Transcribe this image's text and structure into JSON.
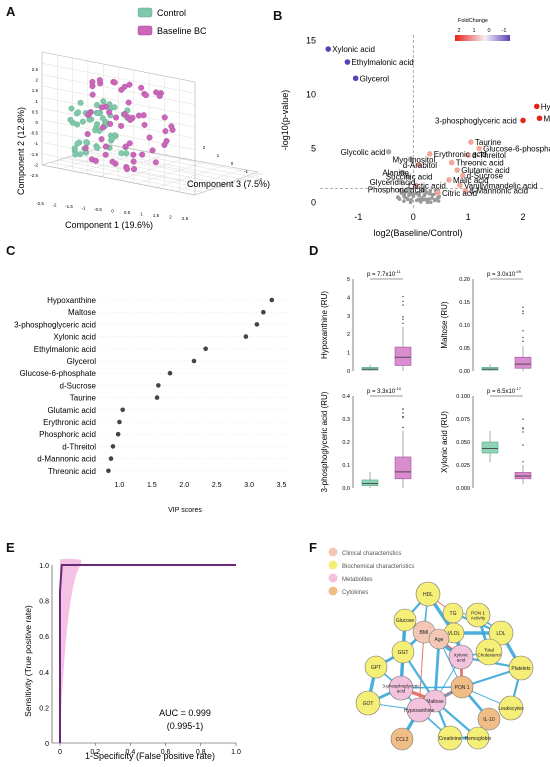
{
  "panels": {
    "a": {
      "label": "A"
    },
    "b": {
      "label": "B"
    },
    "c": {
      "label": "C"
    },
    "d": {
      "label": "D"
    },
    "e": {
      "label": "E"
    },
    "f": {
      "label": "F"
    }
  },
  "chart_data": [
    {
      "panel": "A",
      "type": "scatter",
      "title": "",
      "legend": {
        "placement": "top",
        "entries": [
          {
            "name": "Control",
            "color": "#7fc8a9"
          },
          {
            "name": "Baseline BC",
            "color": "#cc66bb"
          }
        ]
      },
      "xlabel": "Component 1 (19.6%)",
      "ylabel": "Component 2 (12.8%)",
      "zlabel": "Component 3 (7.5%)",
      "y_ticks": [
        "2.5",
        "2",
        "1.5",
        "1",
        "0.5",
        "0",
        "-0.5",
        "-1",
        "-1.5",
        "-2",
        "-2.5"
      ],
      "x_ticks": [
        "-2.5",
        "-2",
        "-1.5",
        "-1",
        "-0.5",
        "0",
        "0.5",
        "1",
        "1.5",
        "2",
        "2.5"
      ],
      "z_ticks": [
        "-2",
        "-1",
        "0",
        "1",
        "2"
      ]
    },
    {
      "panel": "B",
      "type": "scatter",
      "title": "",
      "xlabel": "log2(Baseline/Control)",
      "ylabel": "-log10(p-value)",
      "xlim": [
        -1.7,
        2.4
      ],
      "ylim": [
        -0.5,
        15.5
      ],
      "x_ticks": [
        "-1",
        "0",
        "1",
        "2"
      ],
      "y_ticks": [
        "0",
        "5",
        "10",
        "15"
      ],
      "colorbar": {
        "title": "FoldChange",
        "ticks": [
          "2",
          "1",
          "0",
          "-1"
        ]
      },
      "labeled_points": [
        {
          "name": "Xylonic acid",
          "x": -1.55,
          "y": 14.2
        },
        {
          "name": "Ethylmalonic acid",
          "x": -1.2,
          "y": 13.0
        },
        {
          "name": "Glycerol",
          "x": -1.05,
          "y": 11.5
        },
        {
          "name": "Hypoxanthine",
          "x": 2.25,
          "y": 8.9
        },
        {
          "name": "Maltose",
          "x": 2.3,
          "y": 7.8
        },
        {
          "name": "3-phosphoglyceric acid",
          "x": 2.0,
          "y": 7.6
        },
        {
          "name": "Taurine",
          "x": 1.05,
          "y": 5.6
        },
        {
          "name": "Glucose-6-phosphate",
          "x": 1.2,
          "y": 5.0
        },
        {
          "name": "d-Threitol",
          "x": 1.0,
          "y": 4.4
        },
        {
          "name": "Glycolic acid",
          "x": -0.45,
          "y": 4.7
        },
        {
          "name": "Erythronic acid",
          "x": 0.3,
          "y": 4.5
        },
        {
          "name": "Myo Inositol",
          "x": -0.05,
          "y": 4.0
        },
        {
          "name": "d-Arabitol",
          "x": 0.1,
          "y": 3.5
        },
        {
          "name": "Threonic acid",
          "x": 0.7,
          "y": 3.7
        },
        {
          "name": "Glutamic acid",
          "x": 0.8,
          "y": 3.0
        },
        {
          "name": "d-Sucrose",
          "x": 0.9,
          "y": 2.5
        },
        {
          "name": "Alanine",
          "x": -0.2,
          "y": 2.8
        },
        {
          "name": "Succinic acid",
          "x": -0.1,
          "y": 2.4
        },
        {
          "name": "Malic acid",
          "x": 0.65,
          "y": 2.1
        },
        {
          "name": "Glyceric acid",
          "x": -0.25,
          "y": 1.9
        },
        {
          "name": "Vanillylmandelic acid",
          "x": 0.85,
          "y": 1.6
        },
        {
          "name": "Lactic acid",
          "x": 0.05,
          "y": 1.6
        },
        {
          "name": "Phosphoric acid",
          "x": -0.1,
          "y": 1.2
        },
        {
          "name": "d-Mannonic acid",
          "x": 0.95,
          "y": 1.1
        },
        {
          "name": "Citric acid",
          "x": 0.45,
          "y": 0.9
        }
      ]
    },
    {
      "panel": "C",
      "type": "scatter",
      "title": "",
      "xlabel": "VIP scores",
      "xlim": [
        0.7,
        3.6
      ],
      "x_ticks": [
        "1.0",
        "1.5",
        "2.0",
        "2.5",
        "3.0",
        "3.5"
      ],
      "categories": [
        "Hypoxanthine",
        "Maltose",
        "3-phosphoglyceric acid",
        "Xylonic acid",
        "Ethylmalonic acid",
        "Glycerol",
        "Glucose-6-phosphate",
        "d-Sucrose",
        "Taurine",
        "Glutamic acid",
        "Erythronic acid",
        "Phosphoric acid",
        "d-Threitol",
        "d-Mannonic acid",
        "Threonic acid"
      ],
      "values": [
        3.35,
        3.22,
        3.12,
        2.95,
        2.33,
        2.15,
        1.78,
        1.6,
        1.58,
        1.05,
        1.0,
        0.98,
        0.9,
        0.87,
        0.83
      ]
    },
    {
      "panel": "D",
      "type": "box",
      "groups": [
        "Control",
        "Baseline BC"
      ],
      "plots": [
        {
          "ylabel": "Hypoxanthine (RU)",
          "p_label": "p  = 7.7x10",
          "p_exp": "-11",
          "ylim": [
            0,
            5
          ],
          "y_ticks": [
            "0",
            "1",
            "2",
            "3",
            "4",
            "5"
          ],
          "control": {
            "q1": 0.05,
            "median": 0.1,
            "q3": 0.2,
            "lo": 0.0,
            "hi": 0.35
          },
          "bc": {
            "q1": 0.3,
            "median": 0.75,
            "q3": 1.3,
            "lo": 0.0,
            "hi": 2.4
          }
        },
        {
          "ylabel": "Maltose (RU)",
          "p_label": "p  = 3.0x10",
          "p_exp": "-09",
          "ylim": [
            0,
            0.2
          ],
          "y_ticks": [
            "0.00",
            "0.05",
            "0.10",
            "0.15",
            "0.20"
          ],
          "control": {
            "q1": 0.002,
            "median": 0.004,
            "q3": 0.008,
            "lo": 0.0,
            "hi": 0.015
          },
          "bc": {
            "q1": 0.006,
            "median": 0.015,
            "q3": 0.03,
            "lo": 0.0,
            "hi": 0.055
          }
        },
        {
          "ylabel": "3-phosphoglyceric acid (RU)",
          "p_label": "p  = 3.3x10",
          "p_exp": "-10",
          "ylim": [
            0,
            0.4
          ],
          "y_ticks": [
            "0.0",
            "0.1",
            "0.2",
            "0.3",
            "0.4"
          ],
          "control": {
            "q1": 0.01,
            "median": 0.02,
            "q3": 0.035,
            "lo": 0.0,
            "hi": 0.07
          },
          "bc": {
            "q1": 0.04,
            "median": 0.07,
            "q3": 0.135,
            "lo": 0.0,
            "hi": 0.25
          }
        },
        {
          "ylabel": "Xylonic acid (RU)",
          "p_label": "p  = 6.5x10",
          "p_exp": "-17",
          "ylim": [
            0,
            0.1
          ],
          "y_ticks": [
            "0.000",
            "0.025",
            "0.050",
            "0.075",
            "0.100"
          ],
          "control": {
            "q1": 0.038,
            "median": 0.043,
            "q3": 0.05,
            "lo": 0.028,
            "hi": 0.062
          },
          "bc": {
            "q1": 0.01,
            "median": 0.013,
            "q3": 0.017,
            "lo": 0.004,
            "hi": 0.025
          }
        }
      ]
    },
    {
      "panel": "E",
      "type": "line",
      "title": "",
      "xlabel": "1-Specificity (False positive rate)",
      "ylabel": "Sensitivity (True positive rate)",
      "x_ticks": [
        "0",
        "0.2",
        "0.4",
        "0.6",
        "0.8",
        "1.0"
      ],
      "y_ticks": [
        "0",
        "0.2",
        "0.4",
        "0.6",
        "0.8",
        "1.0"
      ],
      "auc_label": "AUC = 0.999",
      "ci_label": "(0.995-1)",
      "x": [
        0,
        0.0,
        0.01,
        1.0
      ],
      "y": [
        0,
        0.85,
        1.0,
        1.0
      ]
    }
  ],
  "network": {
    "legend": [
      {
        "label": "Clinical characteristics",
        "color": "#f2c7b5"
      },
      {
        "label": "Biochemical characteristics",
        "color": "#f5ef77"
      },
      {
        "label": "Metabolites",
        "color": "#f3c2dd"
      },
      {
        "label": "Cytokines",
        "color": "#f0bd86"
      }
    ],
    "nodes": [
      {
        "id": "HDL",
        "label": "HDL",
        "group": 1
      },
      {
        "id": "TG",
        "label": "TG",
        "group": 1
      },
      {
        "id": "PON1A",
        "label": "PON 1 Activity",
        "group": 1
      },
      {
        "id": "Glucose",
        "label": "Glucose",
        "group": 1
      },
      {
        "id": "BMI",
        "label": "BMI",
        "group": 0
      },
      {
        "id": "VLDL",
        "label": "VLDL",
        "group": 1
      },
      {
        "id": "Age",
        "label": "Age",
        "group": 0
      },
      {
        "id": "LDL",
        "label": "LDL",
        "group": 1
      },
      {
        "id": "TotChol",
        "label": "Total Cholesterol",
        "group": 1
      },
      {
        "id": "GGT",
        "label": "GGT",
        "group": 1
      },
      {
        "id": "Xylonic",
        "label": "Xylonic acid",
        "group": 2
      },
      {
        "id": "GPT",
        "label": "GPT",
        "group": 1
      },
      {
        "id": "Platelets",
        "label": "Platelets",
        "group": 1
      },
      {
        "id": "PON1",
        "label": "PON 1",
        "group": 3
      },
      {
        "id": "PGA",
        "label": "3-phosphoglyceric acid",
        "group": 2
      },
      {
        "id": "Maltose",
        "label": "Maltose",
        "group": 2
      },
      {
        "id": "Hypo",
        "label": "Hypoxanthine",
        "group": 2
      },
      {
        "id": "Leuko",
        "label": "Leukocytes",
        "group": 1
      },
      {
        "id": "GOT",
        "label": "GOT",
        "group": 1
      },
      {
        "id": "IL10",
        "label": "IL-10",
        "group": 3
      },
      {
        "id": "CCL2",
        "label": "CCL2",
        "group": 3
      },
      {
        "id": "Creat",
        "label": "Creatinine",
        "group": 1
      },
      {
        "id": "Hemo",
        "label": "Hemoglobin",
        "group": 1
      }
    ]
  }
}
